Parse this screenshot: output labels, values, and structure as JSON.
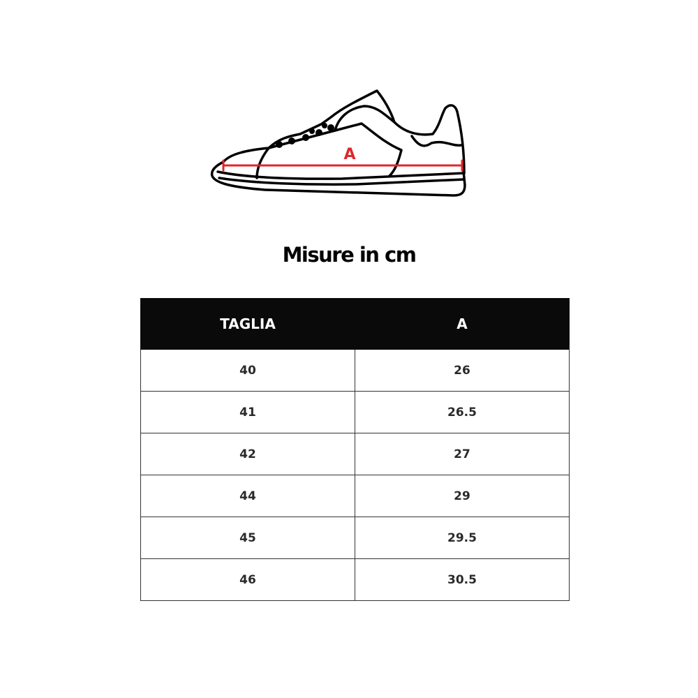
{
  "diagram": {
    "measure_label": "A",
    "measure_color": "#e0262b"
  },
  "title": "Misure in cm",
  "table": {
    "headers": [
      "TAGLIA",
      "A"
    ],
    "rows": [
      [
        "40",
        "26"
      ],
      [
        "41",
        "26.5"
      ],
      [
        "42",
        "27"
      ],
      [
        "44",
        "29"
      ],
      [
        "45",
        "29.5"
      ],
      [
        "46",
        "30.5"
      ]
    ]
  }
}
